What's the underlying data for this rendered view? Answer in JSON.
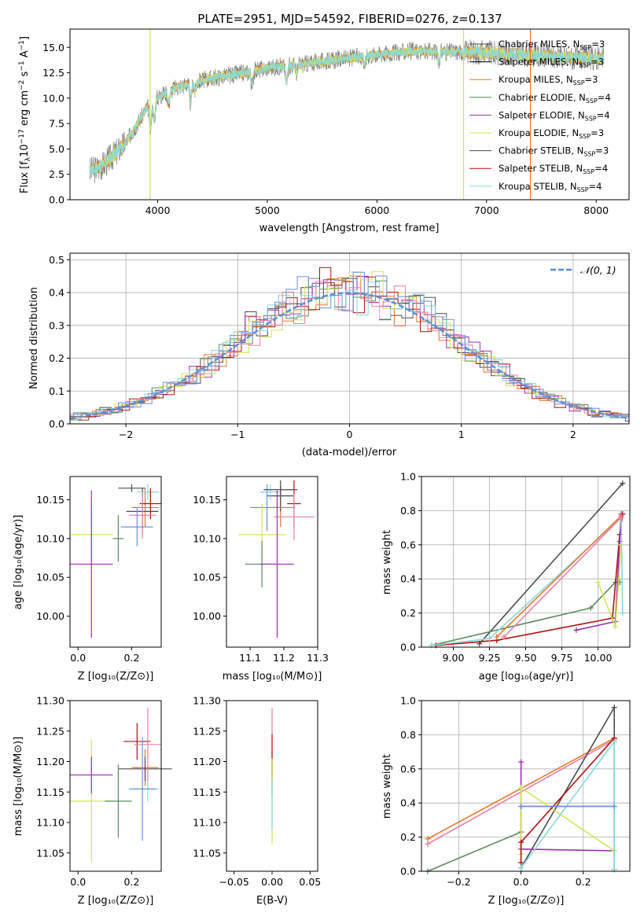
{
  "chart_data": [
    {
      "type": "line",
      "title": "PLATE=2951, MJD=54592, FIBERID=0276, z=0.137",
      "xlabel": "wavelength [Angstrom, rest frame]",
      "ylabel": "Flux [f_λ 10^-17 erg cm^-2 s^-1 A^-1]",
      "ylabel_parts": {
        "a": "Flux [f",
        "sub": "λ",
        "b": "10",
        "sup1": "−17",
        "c": " erg cm",
        "sup2": "−2",
        "d": " s",
        "sup3": "−1",
        "e": " A",
        "sup4": "−1",
        "f": "]"
      },
      "xlim": [
        3200,
        8300
      ],
      "ylim": [
        0,
        16.8
      ],
      "xticks": [
        "4000",
        "5000",
        "6000",
        "7000",
        "8000"
      ],
      "xtick_values": [
        4000,
        5000,
        6000,
        7000,
        8000
      ],
      "yticks": [
        "0.0",
        "2.5",
        "5.0",
        "7.5",
        "10.0",
        "12.5",
        "15.0"
      ],
      "ytick_values": [
        0,
        2.5,
        5.0,
        7.5,
        10.0,
        12.5,
        15.0
      ],
      "legend_placement": "upper-right",
      "data_range_x": [
        3380,
        8070
      ],
      "continuum": {
        "x": [
          3380,
          3500,
          3700,
          3900,
          4000,
          4200,
          4500,
          4800,
          5000,
          5200,
          5500,
          5800,
          6000,
          6300,
          6600,
          7000,
          7400,
          7700,
          8050
        ],
        "y": [
          2.8,
          3.4,
          5.5,
          9.0,
          10.1,
          11.2,
          12.0,
          12.5,
          13.0,
          13.2,
          13.6,
          14.0,
          14.3,
          14.6,
          14.6,
          14.5,
          14.2,
          14.0,
          13.9
        ]
      },
      "series": [
        {
          "name_base": "Chabrier MILES, N",
          "name_sub": "SSP",
          "name_val": "=3",
          "color": "#4d4d4d"
        },
        {
          "name_base": "Salpeter MILES, N",
          "name_sub": "SSP",
          "name_val": "=3",
          "color": "#000000"
        },
        {
          "name_base": "Kroupa MILES, N",
          "name_sub": "SSP",
          "name_val": "=3",
          "color": "#e8762b"
        },
        {
          "name_base": "Chabrier ELODIE, N",
          "name_sub": "SSP",
          "name_val": "=4",
          "color": "#5f8b5f"
        },
        {
          "name_base": "Salpeter ELODIE, N",
          "name_sub": "SSP",
          "name_val": "=4",
          "color": "#9b30b0"
        },
        {
          "name_base": "Kroupa ELODIE, N",
          "name_sub": "SSP",
          "name_val": "=3",
          "color": "#d4e35a"
        },
        {
          "name_base": "Chabrier STELIB, N",
          "name_sub": "SSP",
          "name_val": "=3",
          "color": "#4d4d4d"
        },
        {
          "name_base": "Salpeter STELIB, N",
          "name_sub": "SSP",
          "name_val": "=4",
          "color": "#b01010"
        },
        {
          "name_base": "Kroupa STELIB, N",
          "name_sub": "SSP",
          "name_val": "=4",
          "color": "#88d8d8"
        }
      ]
    },
    {
      "type": "line",
      "xlabel": "(data-model)/error",
      "ylabel": "Normed distribution",
      "xlim": [
        -2.5,
        2.5
      ],
      "ylim": [
        0,
        0.52
      ],
      "xticks": [
        "−2",
        "−1",
        "0",
        "1",
        "2"
      ],
      "xtick_values": [
        -2,
        -1,
        0,
        1,
        2
      ],
      "yticks": [
        "0.0",
        "0.1",
        "0.2",
        "0.3",
        "0.4",
        "0.5"
      ],
      "ytick_values": [
        0,
        0.1,
        0.2,
        0.3,
        0.4,
        0.5
      ],
      "grid": true,
      "legend_label": "𝒩(0, 1)",
      "legend_placement": "upper-right",
      "gaussian": {
        "mu": 0,
        "sigma": 1,
        "color": "#5b8fd6"
      },
      "histogram_bin_width": 0.1,
      "histogram_colors": [
        "#4d4d4d",
        "#e8762b",
        "#5f8b5f",
        "#9b30b0",
        "#d4e35a",
        "#b01010",
        "#88d8d8",
        "#e77fa6",
        "#6e8fe0"
      ]
    },
    {
      "type": "scatter",
      "xlabel": "Z [log₁₀(Z/Z⊙)]",
      "ylabel": "age  [log₁₀(age/yr)]",
      "xlim": [
        -0.03,
        0.31
      ],
      "ylim": [
        9.96,
        10.18
      ],
      "xticks": [
        "0.0",
        "0.2"
      ],
      "xtick_values": [
        0.0,
        0.2
      ],
      "yticks": [
        "10.00",
        "10.05",
        "10.10",
        "10.15"
      ],
      "ytick_values": [
        10.0,
        10.05,
        10.1,
        10.15
      ],
      "points": [
        {
          "x": 0.25,
          "y": 10.14,
          "xerr": 0.05,
          "yerr": 0.025,
          "color": "#e8762b"
        },
        {
          "x": 0.24,
          "y": 10.135,
          "xerr": 0.06,
          "yerr": 0.03,
          "color": "#4d4d4d"
        },
        {
          "x": 0.26,
          "y": 10.16,
          "xerr": 0.04,
          "yerr": 0.01,
          "color": "#88d8d8"
        },
        {
          "x": 0.27,
          "y": 10.145,
          "xerr": 0.04,
          "yerr": 0.02,
          "color": "#b01010"
        },
        {
          "x": 0.24,
          "y": 10.13,
          "xerr": 0.05,
          "yerr": 0.03,
          "color": "#e77fa6"
        },
        {
          "x": 0.22,
          "y": 10.115,
          "xerr": 0.06,
          "yerr": 0.025,
          "color": "#6e8fe0"
        },
        {
          "x": 0.05,
          "y": 10.105,
          "xerr": 0.08,
          "yerr": 0.04,
          "color": "#d4e35a"
        },
        {
          "x": 0.15,
          "y": 10.1,
          "xerr": 0.02,
          "yerr": 0.03,
          "color": "#5f8b5f"
        },
        {
          "x": 0.05,
          "y": 10.067,
          "xerr": 0.08,
          "yerr": 0.095,
          "color": "#9b30b0"
        },
        {
          "x": 0.2,
          "y": 10.165,
          "xerr": 0.05,
          "yerr": 0.005,
          "color": "#4d4d4d"
        }
      ]
    },
    {
      "type": "scatter",
      "xlabel": "mass [log₁₀(M/M⊙)]",
      "ylabel": "",
      "xlim": [
        11.03,
        11.3
      ],
      "ylim": [
        9.96,
        10.18
      ],
      "xticks": [
        "11.1",
        "11.2",
        "11.3"
      ],
      "xtick_values": [
        11.1,
        11.2,
        11.3
      ],
      "yticks": [
        "10.00",
        "10.05",
        "10.10",
        "10.15"
      ],
      "ytick_values": [
        10.0,
        10.05,
        10.1,
        10.15
      ],
      "points": [
        {
          "x": 11.19,
          "y": 10.14,
          "xerr": 0.04,
          "yerr": 0.025,
          "color": "#e8762b"
        },
        {
          "x": 11.19,
          "y": 10.155,
          "xerr": 0.04,
          "yerr": 0.02,
          "color": "#4d4d4d"
        },
        {
          "x": 11.16,
          "y": 10.16,
          "xerr": 0.03,
          "yerr": 0.01,
          "color": "#88d8d8"
        },
        {
          "x": 11.23,
          "y": 10.145,
          "xerr": 0.02,
          "yerr": 0.03,
          "color": "#b01010"
        },
        {
          "x": 11.23,
          "y": 10.128,
          "xerr": 0.06,
          "yerr": 0.03,
          "color": "#e77fa6"
        },
        {
          "x": 11.15,
          "y": 10.14,
          "xerr": 0.05,
          "yerr": 0.03,
          "color": "#6e8fe0"
        },
        {
          "x": 11.135,
          "y": 10.105,
          "xerr": 0.07,
          "yerr": 0.04,
          "color": "#d4e35a"
        },
        {
          "x": 11.135,
          "y": 10.067,
          "xerr": 0.05,
          "yerr": 0.03,
          "color": "#5f8b5f"
        },
        {
          "x": 11.18,
          "y": 10.067,
          "xerr": 0.05,
          "yerr": 0.095,
          "color": "#9b30b0"
        },
        {
          "x": 11.19,
          "y": 10.163,
          "xerr": 0.05,
          "yerr": 0.005,
          "color": "#4d4d4d"
        }
      ]
    },
    {
      "type": "line",
      "xlabel": "age  [log₁₀(age/yr)]",
      "ylabel": "mass weight",
      "xlim": [
        8.78,
        10.22
      ],
      "ylim": [
        0,
        1.0
      ],
      "xticks": [
        "9.00",
        "9.25",
        "9.50",
        "9.75",
        "10.00"
      ],
      "xtick_values": [
        9.0,
        9.25,
        9.5,
        9.75,
        10.0
      ],
      "yticks": [
        "0.0",
        "0.2",
        "0.4",
        "0.6",
        "0.8",
        "1.0"
      ],
      "ytick_values": [
        0,
        0.2,
        0.4,
        0.6,
        0.8,
        1.0
      ],
      "grid": true,
      "series": [
        {
          "color": "#4d4d4d",
          "x": [
            9.18,
            10.17
          ],
          "y": [
            0.02,
            0.96
          ]
        },
        {
          "color": "#5f8b5f",
          "x": [
            8.85,
            9.95,
            10.12,
            10.15
          ],
          "y": [
            0.01,
            0.23,
            0.38,
            0.38
          ]
        },
        {
          "color": "#b01010",
          "x": [
            8.88,
            9.3,
            10.1,
            10.15,
            10.17
          ],
          "y": [
            0.01,
            0.04,
            0.17,
            0.66,
            0.78
          ]
        },
        {
          "color": "#9b30b0",
          "x": [
            9.85,
            10.12,
            10.15,
            10.16
          ],
          "y": [
            0.1,
            0.15,
            0.62,
            0.78
          ]
        },
        {
          "color": "#d4e35a",
          "x": [
            10.0,
            10.12,
            10.16
          ],
          "y": [
            0.38,
            0.12,
            0.6
          ]
        },
        {
          "color": "#88d8d8",
          "x": [
            8.85,
            9.25,
            10.16,
            10.17
          ],
          "y": [
            0.01,
            0.05,
            0.76,
            0.2
          ]
        },
        {
          "color": "#e8762b",
          "x": [
            9.3,
            10.16
          ],
          "y": [
            0.06,
            0.77
          ]
        },
        {
          "color": "#e77fa6",
          "x": [
            9.35,
            10.16
          ],
          "y": [
            0.06,
            0.76
          ]
        }
      ]
    },
    {
      "type": "scatter",
      "xlabel": "Z [log₁₀(Z/Z⊙)]",
      "ylabel": "mass [log₁₀(M/M⊙)]",
      "xlim": [
        -0.03,
        0.31
      ],
      "ylim": [
        11.02,
        11.3
      ],
      "xticks": [
        "0.0",
        "0.2"
      ],
      "xtick_values": [
        0.0,
        0.2
      ],
      "yticks": [
        "11.05",
        "11.10",
        "11.15",
        "11.20",
        "11.25",
        "11.30"
      ],
      "ytick_values": [
        11.05,
        11.1,
        11.15,
        11.2,
        11.25,
        11.3
      ],
      "points": [
        {
          "x": 0.25,
          "y": 11.19,
          "xerr": 0.05,
          "yerr": 0.03,
          "color": "#e8762b"
        },
        {
          "x": 0.25,
          "y": 11.188,
          "xerr": 0.1,
          "yerr": 0.02,
          "color": "#4d4d4d"
        },
        {
          "x": 0.26,
          "y": 11.155,
          "xerr": 0.04,
          "yerr": 0.02,
          "color": "#88d8d8"
        },
        {
          "x": 0.22,
          "y": 11.233,
          "xerr": 0.05,
          "yerr": 0.03,
          "color": "#b01010"
        },
        {
          "x": 0.26,
          "y": 11.228,
          "xerr": 0.05,
          "yerr": 0.06,
          "color": "#e77fa6"
        },
        {
          "x": 0.24,
          "y": 11.155,
          "xerr": 0.05,
          "yerr": 0.085,
          "color": "#6e8fe0"
        },
        {
          "x": 0.05,
          "y": 11.135,
          "xerr": 0.08,
          "yerr": 0.1,
          "color": "#d4e35a"
        },
        {
          "x": 0.15,
          "y": 11.135,
          "xerr": 0.05,
          "yerr": 0.06,
          "color": "#5f8b5f"
        },
        {
          "x": 0.05,
          "y": 11.178,
          "xerr": 0.08,
          "yerr": 0.03,
          "color": "#9b30b0"
        }
      ]
    },
    {
      "type": "scatter",
      "xlabel": "E(B-V)",
      "ylabel": "",
      "xlim": [
        -0.06,
        0.06
      ],
      "ylim": [
        11.02,
        11.3
      ],
      "xticks": [
        "−0.05",
        "0.00",
        "0.05"
      ],
      "xtick_values": [
        -0.05,
        0.0,
        0.05
      ],
      "yticks": [
        "11.05",
        "11.10",
        "11.15",
        "11.20",
        "11.25",
        "11.30"
      ],
      "ytick_values": [
        11.05,
        11.1,
        11.15,
        11.2,
        11.25,
        11.3
      ],
      "points": [
        {
          "x": 0.0,
          "y": 11.228,
          "yerr": 0.06,
          "color": "#e77fa6"
        },
        {
          "x": 0.0,
          "y": 11.21,
          "yerr": 0.035,
          "color": "#b01010"
        },
        {
          "x": 0.0,
          "y": 11.175,
          "yerr": 0.03,
          "color": "#4d4d4d"
        },
        {
          "x": 0.0,
          "y": 11.135,
          "yerr": 0.07,
          "color": "#d4e35a"
        },
        {
          "x": 0.0,
          "y": 11.13,
          "yerr": 0.04,
          "color": "#88d8d8"
        }
      ]
    },
    {
      "type": "line",
      "xlabel": "Z [log₁₀(Z/Z⊙)]",
      "ylabel": "mass weight",
      "xlim": [
        -0.32,
        0.35
      ],
      "ylim": [
        0,
        1.0
      ],
      "xticks": [
        "−0.2",
        "0.0",
        "0.2"
      ],
      "xtick_values": [
        -0.2,
        0.0,
        0.2
      ],
      "yticks": [
        "0.0",
        "0.2",
        "0.4",
        "0.6",
        "0.8",
        "1.0"
      ],
      "ytick_values": [
        0,
        0.2,
        0.4,
        0.6,
        0.8,
        1.0
      ],
      "grid": true,
      "series": [
        {
          "color": "#e8762b",
          "x": [
            -0.3,
            0.3
          ],
          "y": [
            0.19,
            0.78
          ]
        },
        {
          "color": "#e77fa6",
          "x": [
            -0.3,
            0.3
          ],
          "y": [
            0.16,
            0.77
          ]
        },
        {
          "color": "#5f8b5f",
          "x": [
            -0.3,
            0.0,
            0.0,
            0.3
          ],
          "y": [
            0.0,
            0.23,
            0.38,
            0.38
          ]
        },
        {
          "color": "#4d4d4d",
          "x": [
            0.0,
            0.3,
            0.3
          ],
          "y": [
            0.02,
            0.96,
            0.01
          ]
        },
        {
          "color": "#9b30b0",
          "x": [
            0.0,
            0.0,
            0.3
          ],
          "y": [
            0.64,
            0.13,
            0.12
          ]
        },
        {
          "color": "#d4e35a",
          "x": [
            0.0,
            0.0,
            0.3
          ],
          "y": [
            0.1,
            0.49,
            0.12
          ]
        },
        {
          "color": "#b01010",
          "x": [
            0.0,
            0.0,
            0.3
          ],
          "y": [
            0.05,
            0.17,
            0.78
          ]
        },
        {
          "color": "#88d8d8",
          "x": [
            0.0,
            0.3,
            0.3
          ],
          "y": [
            0.02,
            0.76,
            0.01
          ]
        },
        {
          "color": "#6e8fe0",
          "x": [
            0.0,
            0.3
          ],
          "y": [
            0.38,
            0.38
          ]
        }
      ]
    }
  ]
}
